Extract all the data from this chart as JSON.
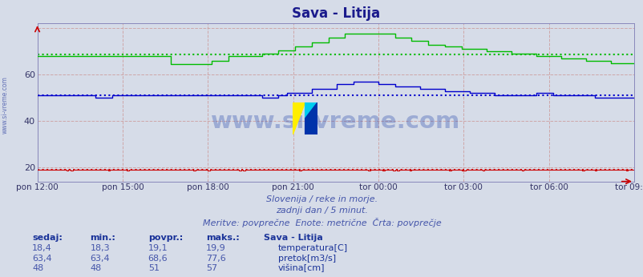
{
  "title": "Sava - Litija",
  "title_color": "#1a1a8c",
  "bg_color": "#d6dce8",
  "plot_bg_color": "#d6dce8",
  "grid_color_v": "#cc9999",
  "grid_color_h": "#cc9999",
  "x_labels": [
    "pon 12:00",
    "pon 15:00",
    "pon 18:00",
    "pon 21:00",
    "tor 00:00",
    "tor 03:00",
    "tor 06:00",
    "tor 09:00"
  ],
  "y_ticks": [
    20,
    40,
    60
  ],
  "ylim": [
    14,
    82
  ],
  "xlim_min": 0,
  "xlim_max": 287,
  "n_points": 288,
  "temp_avg": 19.1,
  "temp_min_val": 18.3,
  "temp_max_val": 19.9,
  "temp_sedaj": "18,4",
  "temp_min_s": "18,3",
  "temp_avg_s": "19,1",
  "temp_max_s": "19,9",
  "pretok_avg": 68.6,
  "pretok_min_val": 63.4,
  "pretok_max_val": 77.6,
  "pretok_sedaj": "63,4",
  "pretok_min_s": "63,4",
  "pretok_avg_s": "68,6",
  "pretok_max_s": "77,6",
  "visina_avg": 51,
  "visina_min_val": 48,
  "visina_max_val": 57,
  "visina_sedaj": "48",
  "visina_min_s": "48",
  "visina_avg_s": "51",
  "visina_max_s": "57",
  "temp_color": "#cc0000",
  "pretok_color": "#00bb00",
  "visina_color": "#0000cc",
  "subtitle1": "Slovenija / reke in morje.",
  "subtitle2": "zadnji dan / 5 minut.",
  "subtitle3": "Meritve: povprečne  Enote: metrične  Črta: povprečje",
  "subtitle_color": "#4455aa",
  "table_header_color": "#1a3399",
  "table_data_color": "#4455aa",
  "table_label_color": "#1a3399",
  "watermark_color": "#2244aa",
  "watermark_text": "www.si-vreme.com",
  "left_label": "www.si-vreme.com",
  "left_label_color": "#4455aa"
}
